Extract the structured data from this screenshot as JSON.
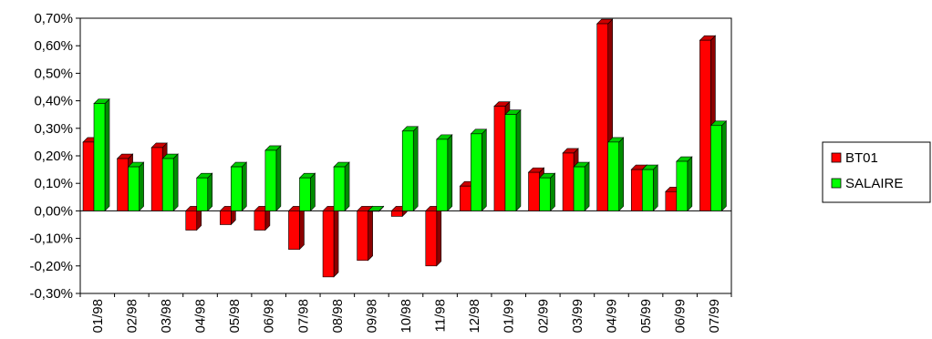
{
  "chart_data": {
    "type": "bar",
    "categories": [
      "01/98",
      "02/98",
      "03/98",
      "04/98",
      "05/98",
      "06/98",
      "07/98",
      "08/98",
      "09/98",
      "10/98",
      "11/98",
      "12/98",
      "01/99",
      "02/99",
      "03/99",
      "04/99",
      "05/99",
      "06/99",
      "07/99"
    ],
    "series": [
      {
        "name": "BT01",
        "color": "#ff0000",
        "values": [
          0.25,
          0.19,
          0.23,
          -0.07,
          -0.05,
          -0.07,
          -0.14,
          -0.24,
          -0.18,
          -0.02,
          -0.2,
          0.09,
          0.38,
          0.14,
          0.21,
          0.68,
          0.15,
          0.07,
          0.62
        ]
      },
      {
        "name": "SALAIRE",
        "color": "#00ff00",
        "values": [
          0.39,
          0.16,
          0.19,
          0.12,
          0.16,
          0.22,
          0.12,
          0.16,
          0.0,
          0.29,
          0.26,
          0.28,
          0.35,
          0.12,
          0.16,
          0.25,
          0.15,
          0.18,
          0.31
        ]
      }
    ],
    "yticks": [
      "0,70%",
      "0,60%",
      "0,50%",
      "0,40%",
      "0,30%",
      "0,20%",
      "0,10%",
      "0,00%",
      "-0,10%",
      "-0,20%",
      "-0,30%"
    ],
    "ylim": [
      -0.3,
      0.7
    ],
    "legend_position": "right",
    "grid": false,
    "title": "",
    "xlabel": "",
    "ylabel": ""
  }
}
